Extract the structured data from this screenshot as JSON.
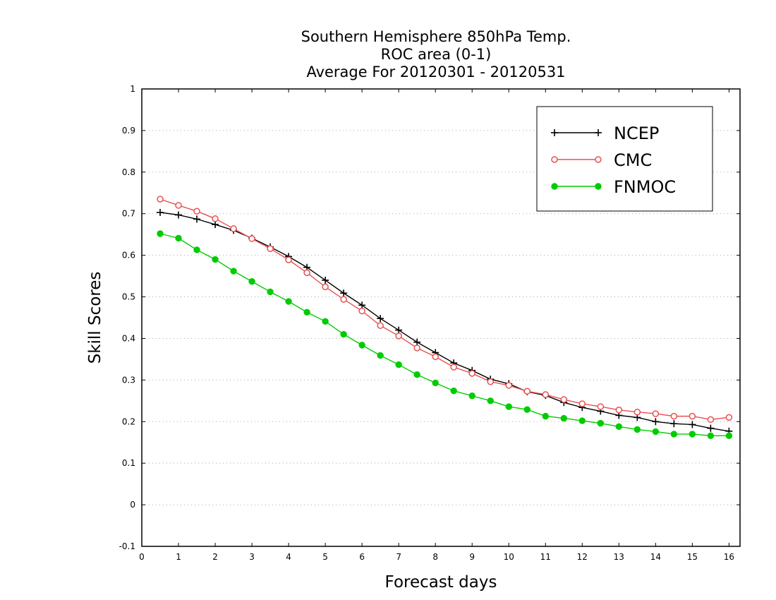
{
  "chart_data": {
    "type": "line",
    "title_lines": [
      "Southern Hemisphere 850hPa Temp.",
      "ROC area (0-1)",
      "Average For 20120301 - 20120531"
    ],
    "xlabel": "Forecast days",
    "ylabel": "Skill Scores",
    "xlim": [
      0,
      16.3
    ],
    "ylim": [
      -0.1,
      1
    ],
    "xticks": [
      0,
      1,
      2,
      3,
      4,
      5,
      6,
      7,
      8,
      9,
      10,
      11,
      12,
      13,
      14,
      15,
      16
    ],
    "xtick_labels": [
      "0",
      "1",
      "2",
      "3",
      "4",
      "5",
      "6",
      "7",
      "8",
      "9",
      "10",
      "11",
      "12",
      "13",
      "14",
      "15",
      "16"
    ],
    "yticks": [
      -0.1,
      0,
      0.1,
      0.2,
      0.3,
      0.4,
      0.5,
      0.6,
      0.7,
      0.8,
      0.9,
      1
    ],
    "ytick_labels": [
      "-0.1",
      "0",
      "0.1",
      "0.2",
      "0.3",
      "0.4",
      "0.5",
      "0.6",
      "0.7",
      "0.8",
      "0.9",
      "1"
    ],
    "grid": "horizontal dotted",
    "legend_position": "top-right",
    "x": [
      0.5,
      1.0,
      1.5,
      2.0,
      2.5,
      3.0,
      3.5,
      4.0,
      4.5,
      5.0,
      5.5,
      6.0,
      6.5,
      7.0,
      7.5,
      8.0,
      8.5,
      9.0,
      9.5,
      10.0,
      10.5,
      11.0,
      11.5,
      12.0,
      12.5,
      13.0,
      13.5,
      14.0,
      14.5,
      15.0,
      15.5,
      16.0
    ],
    "series": [
      {
        "name": "NCEP",
        "color": "#000000",
        "marker": "plus",
        "values": [
          0.703,
          0.697,
          0.687,
          0.674,
          0.66,
          0.641,
          0.62,
          0.597,
          0.571,
          0.54,
          0.509,
          0.48,
          0.448,
          0.42,
          0.391,
          0.366,
          0.341,
          0.323,
          0.302,
          0.291,
          0.272,
          0.263,
          0.246,
          0.234,
          0.225,
          0.215,
          0.21,
          0.2,
          0.195,
          0.193,
          0.184,
          0.177
        ]
      },
      {
        "name": "CMC",
        "color": "#e85050",
        "marker": "open-circle",
        "values": [
          0.735,
          0.72,
          0.706,
          0.688,
          0.664,
          0.64,
          0.616,
          0.589,
          0.558,
          0.524,
          0.494,
          0.466,
          0.431,
          0.406,
          0.377,
          0.356,
          0.331,
          0.316,
          0.296,
          0.287,
          0.273,
          0.265,
          0.253,
          0.243,
          0.236,
          0.228,
          0.223,
          0.219,
          0.213,
          0.213,
          0.205,
          0.21
        ]
      },
      {
        "name": "FNMOC",
        "color": "#00cc00",
        "marker": "filled-circle",
        "values": [
          0.652,
          0.641,
          0.613,
          0.59,
          0.562,
          0.537,
          0.512,
          0.489,
          0.463,
          0.441,
          0.41,
          0.384,
          0.359,
          0.337,
          0.313,
          0.293,
          0.274,
          0.262,
          0.25,
          0.236,
          0.229,
          0.213,
          0.208,
          0.202,
          0.196,
          0.188,
          0.181,
          0.176,
          0.17,
          0.17,
          0.166,
          0.166
        ]
      }
    ]
  }
}
